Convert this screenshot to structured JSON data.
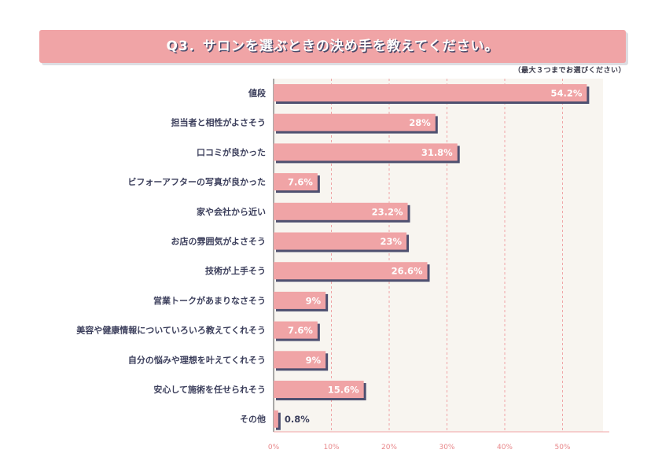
{
  "header": {
    "title": "Q3．サロンを選ぶときの決め手を教えてください。",
    "note": "（最大３つまでお選びください）"
  },
  "colors": {
    "bar": "#f0a4a6",
    "bar_shadow": "#4e5070",
    "plot_bg": "#f8f5f0",
    "grid": "#f0a4a6",
    "axis": "#f0a4a6",
    "label": "#3c3f5c",
    "value_in": "#ffffff",
    "value_out": "#3c3f5c"
  },
  "chart_data": {
    "type": "bar",
    "orientation": "horizontal",
    "categories": [
      "値段",
      "担当者と相性がよさそう",
      "口コミが良かった",
      "ビフォーアフターの写真が良かった",
      "家や会社から近い",
      "お店の雰囲気がよさそう",
      "技術が上手そう",
      "営業トークがあまりなさそう",
      "美容や健康情報についていろいろ教えてくれそう",
      "自分の悩みや理想を叶えてくれそう",
      "安心して施術を任せられそう",
      "その他"
    ],
    "values": [
      54.2,
      28,
      31.8,
      7.6,
      23.2,
      23,
      26.6,
      9,
      7.6,
      9,
      15.6,
      0.8
    ],
    "value_labels": [
      "54.2%",
      "28%",
      "31.8%",
      "7.6%",
      "23.2%",
      "23%",
      "26.6%",
      "9%",
      "7.6%",
      "9%",
      "15.6%",
      "0.8%"
    ],
    "xlim": [
      0,
      57
    ],
    "xticks": [
      0,
      10,
      20,
      30,
      40,
      50
    ],
    "xtick_labels": [
      "0%",
      "10%",
      "20%",
      "30%",
      "40%",
      "50%"
    ],
    "grid": true,
    "legend": "none"
  }
}
